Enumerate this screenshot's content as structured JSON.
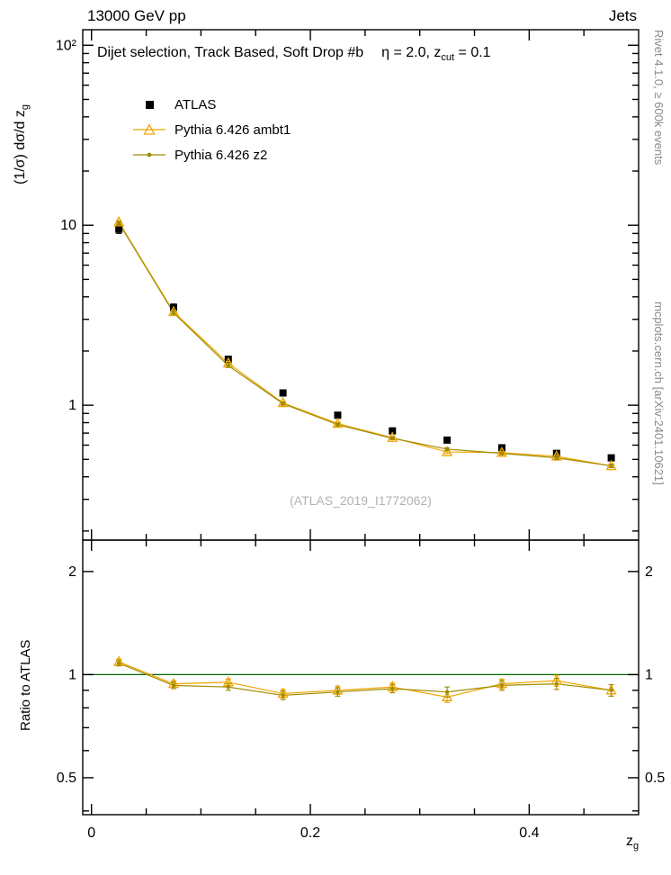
{
  "page": {
    "title_left": "13000 GeV pp",
    "title_right": "Jets",
    "watermark": "(ATLAS_2019_I1772062)",
    "right_note_top": "Rivet 4.1.0, ≥ 600k events",
    "right_note_bottom": "mcplots.cern.ch [arXiv:2401.10621]"
  },
  "annotation": {
    "selection": "Dijet selection, Track Based, Soft Drop #b",
    "eta": "η = 2.0, z",
    "eta_sub": "cut",
    "eta_tail": " = 0.1"
  },
  "axes": {
    "ylabel_main_pre": "(1/σ) dσ/d z",
    "ylabel_main_sub": "g",
    "ylabel_ratio": "Ratio to ATLAS",
    "xlabel_pre": "z",
    "xlabel_sub": "g"
  },
  "chart_data": [
    {
      "type": "line",
      "panel": "main",
      "title": "Dijet selection, Track Based, Soft Drop #b, eta = 2.0, z_cut = 0.1",
      "xlabel": "z_g",
      "ylabel": "(1/sigma) dsigma/d z_g",
      "yscale": "log",
      "xlim": [
        -0.008,
        0.5
      ],
      "ylim": [
        0.178,
        122
      ],
      "xticks_major": [
        0,
        0.2,
        0.4
      ],
      "xtick_labels": [
        "0",
        "0.2",
        "0.4"
      ],
      "yticks_major": [
        1,
        10,
        100
      ],
      "ytick_labels": [
        "1",
        "10",
        "10²"
      ],
      "yticks_minor": [
        0.2,
        0.3,
        0.4,
        0.5,
        0.6,
        0.7,
        0.8,
        0.9,
        2,
        3,
        4,
        5,
        6,
        7,
        8,
        9,
        20,
        30,
        40,
        50,
        60,
        70,
        80,
        90
      ],
      "labels_both_sides": false,
      "x": [
        0.025,
        0.075,
        0.125,
        0.175,
        0.225,
        0.275,
        0.325,
        0.375,
        0.425,
        0.475
      ],
      "series": [
        {
          "name": "ATLAS",
          "marker": "square",
          "color": "#000000",
          "line": false,
          "values": [
            9.5,
            3.5,
            1.8,
            1.17,
            0.88,
            0.72,
            0.64,
            0.58,
            0.54,
            0.51
          ],
          "errors": [
            0.5,
            0.15,
            0.06,
            0.04,
            0.03,
            0.02,
            0.02,
            0.015,
            0.015,
            0.015
          ]
        },
        {
          "name": "Pythia 6.426 ambt1",
          "marker": "triangle-open",
          "color": "#f0a500",
          "line": true,
          "values": [
            10.4,
            3.3,
            1.71,
            1.03,
            0.79,
            0.66,
            0.55,
            0.545,
            0.52,
            0.46
          ],
          "errors": [
            0.2,
            0.07,
            0.04,
            0.02,
            0.015,
            0.012,
            0.01,
            0.01,
            0.01,
            0.01
          ]
        },
        {
          "name": "Pythia 6.426 z2",
          "marker": "dot",
          "color": "#a08c00",
          "line": true,
          "values": [
            10.3,
            3.26,
            1.66,
            1.02,
            0.78,
            0.655,
            0.57,
            0.54,
            0.51,
            0.46
          ],
          "errors": [
            0.2,
            0.07,
            0.04,
            0.02,
            0.015,
            0.012,
            0.01,
            0.01,
            0.01,
            0.01
          ]
        }
      ]
    },
    {
      "type": "line",
      "panel": "ratio",
      "ylabel": "Ratio to ATLAS",
      "yscale": "log",
      "xlim": [
        -0.008,
        0.5
      ],
      "ylim": [
        0.39,
        2.47
      ],
      "xticks_major": [
        0,
        0.2,
        0.4
      ],
      "xtick_labels": [
        "0",
        "0.2",
        "0.4"
      ],
      "yticks_major": [
        0.5,
        1,
        2
      ],
      "ytick_labels": [
        "0.5",
        "1",
        "2"
      ],
      "yticks_minor": [
        0.4,
        0.6,
        0.7,
        0.8,
        0.9
      ],
      "labels_both_sides": true,
      "ref_line": {
        "y": 1,
        "color": "#006600"
      },
      "x": [
        0.025,
        0.075,
        0.125,
        0.175,
        0.225,
        0.275,
        0.325,
        0.375,
        0.425,
        0.475
      ],
      "series": [
        {
          "name": "Pythia 6.426 ambt1",
          "marker": "triangle-open",
          "color": "#f0a500",
          "line": true,
          "values": [
            1.09,
            0.94,
            0.95,
            0.88,
            0.9,
            0.92,
            0.86,
            0.94,
            0.96,
            0.9
          ],
          "errors": [
            0.02,
            0.02,
            0.02,
            0.025,
            0.025,
            0.025,
            0.03,
            0.03,
            0.035,
            0.035
          ]
        },
        {
          "name": "Pythia 6.426 z2",
          "marker": "dot",
          "color": "#a08c00",
          "line": true,
          "values": [
            1.08,
            0.93,
            0.92,
            0.87,
            0.89,
            0.91,
            0.89,
            0.93,
            0.94,
            0.9
          ],
          "errors": [
            0.02,
            0.02,
            0.02,
            0.025,
            0.025,
            0.025,
            0.03,
            0.03,
            0.035,
            0.035
          ]
        }
      ]
    }
  ]
}
